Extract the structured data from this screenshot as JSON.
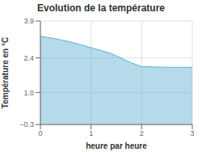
{
  "chart_data": {
    "type": "area",
    "title": "Evolution de la température",
    "xlabel": "heure par heure",
    "ylabel": "Température en °C",
    "x": [
      0,
      0.3,
      0.6,
      1.0,
      1.4,
      1.8,
      2.0,
      2.5,
      3.0
    ],
    "values": [
      3.28,
      3.18,
      3.05,
      2.82,
      2.58,
      2.2,
      2.05,
      2.02,
      2.02
    ],
    "color": "#5bafd0",
    "xlim": [
      0,
      3
    ],
    "ylim": [
      -0.3,
      3.9
    ],
    "xticks": [
      0,
      1,
      2,
      3
    ],
    "yticks": [
      {
        "value": -0.3,
        "label": "−0.3"
      },
      {
        "value": 1.0,
        "label": "1.0"
      },
      {
        "value": 2.4,
        "label": "2.4"
      },
      {
        "value": 3.9,
        "label": "3.9"
      }
    ],
    "grid": true
  }
}
